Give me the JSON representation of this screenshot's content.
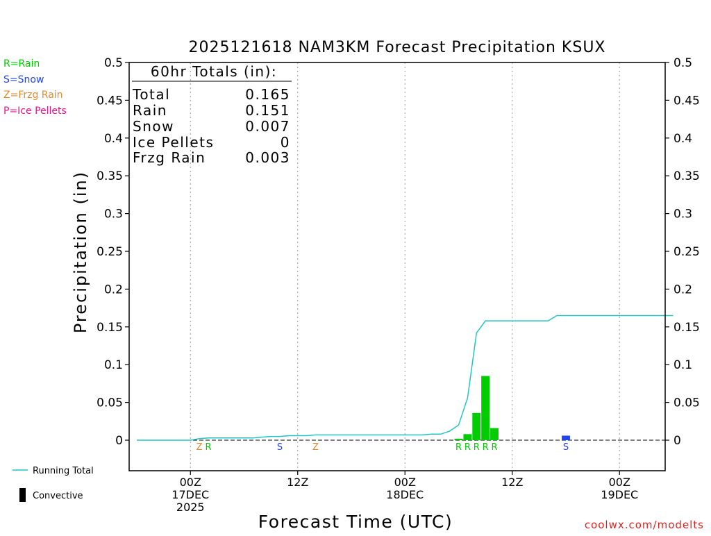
{
  "title": "2025121618 NAM3KM Forecast Precipitation KSUX",
  "type_legend": [
    {
      "text": "R=Rain",
      "color": "#00cc00"
    },
    {
      "text": "S=Snow",
      "color": "#2244ee"
    },
    {
      "text": "Z=Frzg Rain",
      "color": "#e08a2e"
    },
    {
      "text": "P=Ice Pellets",
      "color": "#ee1188"
    }
  ],
  "totals": {
    "heading": "60hr Totals (in):",
    "rows": [
      {
        "label": "Total",
        "value": "0.165"
      },
      {
        "label": "Rain",
        "value": "0.151"
      },
      {
        "label": "Snow",
        "value": "0.007"
      },
      {
        "label": "Ice Pellets",
        "value": "0"
      },
      {
        "label": "Frzg Rain",
        "value": "0.003"
      }
    ]
  },
  "bottom_legend": {
    "running_total": "Running Total",
    "convective": "Convective"
  },
  "watermark": "coolwx.com/modelts",
  "colors": {
    "rain": "#00cc00",
    "snow": "#2244ee",
    "frzg_rain": "#e08a2e",
    "running_total": "#22c4c4",
    "convective": "#000000"
  },
  "chart_data": {
    "type": "bar",
    "title": "2025121618 NAM3KM Forecast Precipitation KSUX",
    "xlabel": "Forecast Time (UTC)",
    "ylabel": "Precipitation (in)",
    "x_unit": "forecast hour from 2025121618",
    "xlim": [
      0,
      60
    ],
    "ylim": [
      -0.04,
      0.5
    ],
    "yticks": [
      0,
      0.05,
      0.1,
      0.15,
      0.2,
      0.25,
      0.3,
      0.35,
      0.4,
      0.45,
      0.5
    ],
    "ytick_labels": [
      "0",
      "0.05",
      "0.1",
      "0.15",
      "0.2",
      "0.25",
      "0.3",
      "0.35",
      "0.4",
      "0.45",
      "0.5"
    ],
    "xticks": [
      {
        "hour": 6,
        "lines": [
          "00Z",
          "17DEC",
          "2025"
        ]
      },
      {
        "hour": 18,
        "lines": [
          "12Z"
        ]
      },
      {
        "hour": 30,
        "lines": [
          "00Z",
          "18DEC"
        ]
      },
      {
        "hour": 42,
        "lines": [
          "12Z"
        ]
      },
      {
        "hour": 54,
        "lines": [
          "00Z",
          "19DEC"
        ]
      }
    ],
    "grid": "vertical dotted at tick hours",
    "series": [
      {
        "name": "Rain",
        "type": "bar",
        "bars": [
          {
            "hour": 36,
            "value": 0.002
          },
          {
            "hour": 37,
            "value": 0.008
          },
          {
            "hour": 38,
            "value": 0.036
          },
          {
            "hour": 39,
            "value": 0.085
          },
          {
            "hour": 40,
            "value": 0.016
          }
        ]
      },
      {
        "name": "Snow",
        "type": "bar",
        "bars": [
          {
            "hour": 48,
            "value": 0.006
          }
        ]
      },
      {
        "name": "Running Total",
        "type": "line",
        "points": [
          [
            0,
            0.0
          ],
          [
            5,
            0.0
          ],
          [
            6,
            0.0
          ],
          [
            7,
            0.002
          ],
          [
            8,
            0.003
          ],
          [
            9,
            0.003
          ],
          [
            10,
            0.003
          ],
          [
            11,
            0.003
          ],
          [
            12,
            0.003
          ],
          [
            13,
            0.003
          ],
          [
            14,
            0.004
          ],
          [
            15,
            0.005
          ],
          [
            16,
            0.005
          ],
          [
            17,
            0.006
          ],
          [
            18,
            0.006
          ],
          [
            19,
            0.006
          ],
          [
            20,
            0.007
          ],
          [
            21,
            0.007
          ],
          [
            22,
            0.007
          ],
          [
            23,
            0.007
          ],
          [
            24,
            0.007
          ],
          [
            25,
            0.007
          ],
          [
            26,
            0.007
          ],
          [
            27,
            0.007
          ],
          [
            28,
            0.007
          ],
          [
            29,
            0.007
          ],
          [
            30,
            0.007
          ],
          [
            31,
            0.007
          ],
          [
            32,
            0.007
          ],
          [
            33,
            0.008
          ],
          [
            34,
            0.008
          ],
          [
            35,
            0.012
          ],
          [
            36,
            0.02
          ],
          [
            37,
            0.056
          ],
          [
            38,
            0.142
          ],
          [
            39,
            0.158
          ],
          [
            40,
            0.158
          ],
          [
            41,
            0.158
          ],
          [
            42,
            0.158
          ],
          [
            43,
            0.158
          ],
          [
            44,
            0.158
          ],
          [
            45,
            0.158
          ],
          [
            46,
            0.158
          ],
          [
            47,
            0.165
          ],
          [
            48,
            0.165
          ],
          [
            49,
            0.165
          ],
          [
            50,
            0.165
          ],
          [
            51,
            0.165
          ],
          [
            52,
            0.165
          ],
          [
            53,
            0.165
          ],
          [
            54,
            0.165
          ],
          [
            55,
            0.165
          ],
          [
            56,
            0.165
          ],
          [
            57,
            0.165
          ],
          [
            58,
            0.165
          ],
          [
            59,
            0.165
          ],
          [
            60,
            0.165
          ]
        ]
      }
    ],
    "type_markers": [
      {
        "hour": 7,
        "code": "Z"
      },
      {
        "hour": 8,
        "code": "R"
      },
      {
        "hour": 16,
        "code": "S"
      },
      {
        "hour": 20,
        "code": "Z"
      },
      {
        "hour": 36,
        "code": "R"
      },
      {
        "hour": 37,
        "code": "R"
      },
      {
        "hour": 38,
        "code": "R"
      },
      {
        "hour": 39,
        "code": "R"
      },
      {
        "hour": 40,
        "code": "R"
      },
      {
        "hour": 48,
        "code": "S"
      }
    ]
  }
}
